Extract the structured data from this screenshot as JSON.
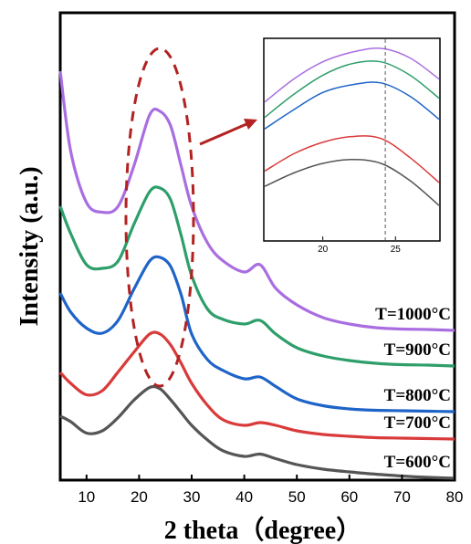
{
  "chart_data": {
    "type": "line",
    "xlabel": "2 theta（degree）",
    "ylabel": "Intensity (a.u.)",
    "xlim": [
      5,
      80
    ],
    "x_ticks": [
      "10",
      "20",
      "30",
      "40",
      "50",
      "60",
      "70",
      "80"
    ],
    "x": [
      5,
      7,
      10,
      13,
      16,
      19,
      22,
      24,
      26,
      28,
      30,
      33,
      36,
      40,
      43,
      46,
      50,
      55,
      60,
      65,
      70,
      75,
      80
    ],
    "series": [
      {
        "name": "T=600°C",
        "color": "#555555",
        "values": [
          0.14,
          0.128,
          0.103,
          0.108,
          0.137,
          0.175,
          0.203,
          0.2,
          0.176,
          0.148,
          0.12,
          0.088,
          0.064,
          0.052,
          0.057,
          0.047,
          0.034,
          0.024,
          0.018,
          0.013,
          0.009,
          0.006,
          0.004
        ]
      },
      {
        "name": "T=700°C",
        "color": "#d93a3a",
        "values": [
          0.236,
          0.212,
          0.187,
          0.196,
          0.237,
          0.28,
          0.32,
          0.32,
          0.296,
          0.256,
          0.212,
          0.164,
          0.132,
          0.12,
          0.126,
          0.12,
          0.108,
          0.1,
          0.096,
          0.093,
          0.092,
          0.091,
          0.09
        ]
      },
      {
        "name": "T=800°C",
        "color": "#1e64c8",
        "values": [
          0.41,
          0.368,
          0.333,
          0.322,
          0.35,
          0.418,
          0.48,
          0.488,
          0.468,
          0.406,
          0.32,
          0.264,
          0.24,
          0.222,
          0.226,
          0.205,
          0.178,
          0.163,
          0.156,
          0.153,
          0.152,
          0.151,
          0.15
        ]
      },
      {
        "name": "T=900°C",
        "color": "#2e9e6a",
        "values": [
          0.6,
          0.54,
          0.472,
          0.464,
          0.48,
          0.56,
          0.632,
          0.64,
          0.614,
          0.536,
          0.448,
          0.375,
          0.352,
          0.342,
          0.35,
          0.32,
          0.29,
          0.272,
          0.262,
          0.256,
          0.253,
          0.252,
          0.25
        ]
      },
      {
        "name": "T=1000°C",
        "color": "#a96ee0",
        "values": [
          0.896,
          0.72,
          0.608,
          0.587,
          0.6,
          0.688,
          0.8,
          0.808,
          0.776,
          0.688,
          0.6,
          0.52,
          0.48,
          0.456,
          0.472,
          0.42,
          0.384,
          0.356,
          0.342,
          0.334,
          0.331,
          0.33,
          0.328
        ]
      }
    ],
    "inset": {
      "x_ticks": [
        "20",
        "25"
      ],
      "xlim": [
        16,
        28
      ],
      "reference_line_x": 24.3,
      "values": {
        "T=1000°C": [
          [
            16,
            0.72
          ],
          [
            18,
            0.84
          ],
          [
            20,
            0.93
          ],
          [
            22,
            0.98
          ],
          [
            24,
            1.0
          ],
          [
            26,
            0.95
          ],
          [
            28,
            0.84
          ]
        ],
        "T=900°C": [
          [
            16,
            0.64
          ],
          [
            18,
            0.76
          ],
          [
            20,
            0.86
          ],
          [
            22,
            0.92
          ],
          [
            24,
            0.93
          ],
          [
            26,
            0.86
          ],
          [
            28,
            0.74
          ]
        ],
        "T=800°C": [
          [
            16,
            0.58
          ],
          [
            18,
            0.68
          ],
          [
            20,
            0.77
          ],
          [
            22,
            0.81
          ],
          [
            24,
            0.82
          ],
          [
            26,
            0.75
          ],
          [
            28,
            0.63
          ]
        ],
        "T=700°C": [
          [
            16,
            0.36
          ],
          [
            18,
            0.45
          ],
          [
            20,
            0.51
          ],
          [
            22,
            0.54
          ],
          [
            24,
            0.53
          ],
          [
            26,
            0.43
          ],
          [
            28,
            0.3
          ]
        ],
        "T=600°C": [
          [
            16,
            0.28
          ],
          [
            18,
            0.35
          ],
          [
            20,
            0.4
          ],
          [
            22,
            0.42
          ],
          [
            24,
            0.4
          ],
          [
            26,
            0.31
          ],
          [
            28,
            0.18
          ]
        ]
      }
    },
    "annotation": "dashed ellipse around the ~24° peak with arrow pointing to the inset",
    "annotation_color": "#b22222"
  }
}
